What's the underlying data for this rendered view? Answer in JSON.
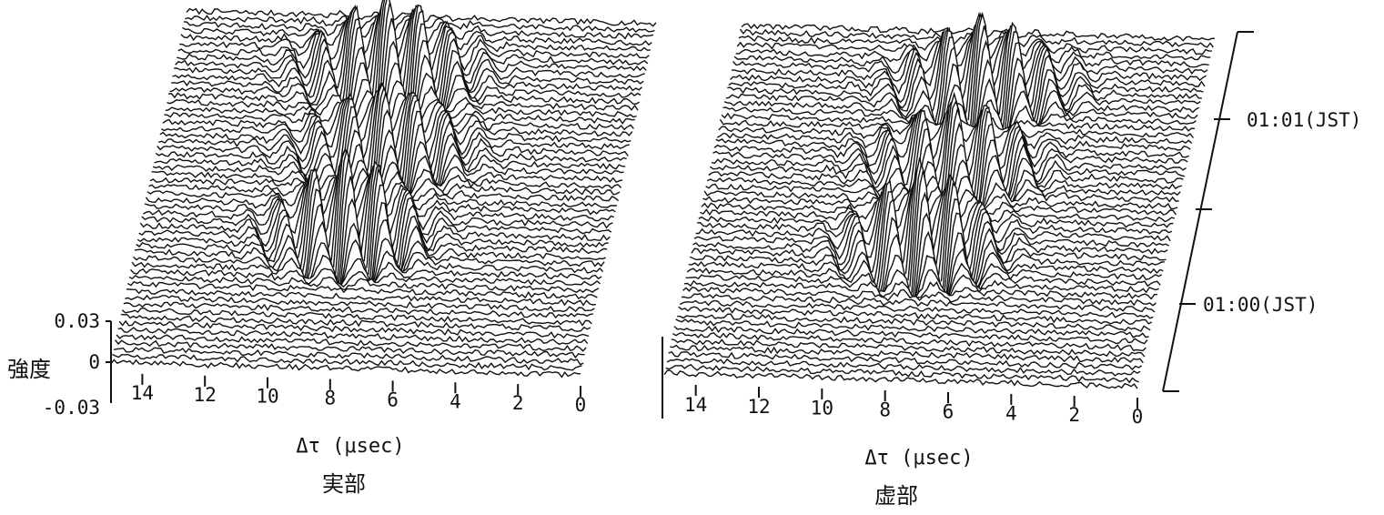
{
  "chart_data": [
    {
      "type": "waterfall-3d",
      "caption": "実部",
      "x_axis": {
        "label": "Δτ (μsec)",
        "ticks": [
          "14",
          "12",
          "10",
          "8",
          "6",
          "4",
          "2",
          "0"
        ],
        "range": [
          15,
          0
        ]
      },
      "z_axis": {
        "label": "強度",
        "ticks": [
          "0.03",
          "0",
          "-0.03"
        ],
        "range": [
          -0.03,
          0.03
        ]
      },
      "traces": 55,
      "events": [
        {
          "trace_center": 8,
          "delay_us": 8.2,
          "amplitude": 0.055,
          "width_us": 1.6,
          "freq": 1.9
        },
        {
          "trace_center": 20,
          "delay_us": 7.8,
          "amplitude": 0.045,
          "width_us": 1.6,
          "freq": 1.9
        },
        {
          "trace_center": 33,
          "delay_us": 8.4,
          "amplitude": 0.06,
          "width_us": 1.4,
          "freq": 1.9
        }
      ]
    },
    {
      "type": "waterfall-3d",
      "caption": "虚部",
      "x_axis": {
        "label": "Δτ (μsec)",
        "ticks": [
          "14",
          "12",
          "10",
          "8",
          "6",
          "4",
          "2",
          "0"
        ],
        "range": [
          15,
          0
        ]
      },
      "time_axis": {
        "ticks": [
          "01:01(JST)",
          "01:00(JST)"
        ]
      },
      "traces": 55,
      "events": [
        {
          "trace_center": 8,
          "delay_us": 7.0,
          "amplitude": 0.05,
          "width_us": 1.6,
          "freq": 1.9
        },
        {
          "trace_center": 20,
          "delay_us": 7.3,
          "amplitude": 0.045,
          "width_us": 1.6,
          "freq": 1.9
        },
        {
          "trace_center": 33,
          "delay_us": 7.8,
          "amplitude": 0.06,
          "width_us": 1.4,
          "freq": 1.9
        }
      ]
    }
  ]
}
